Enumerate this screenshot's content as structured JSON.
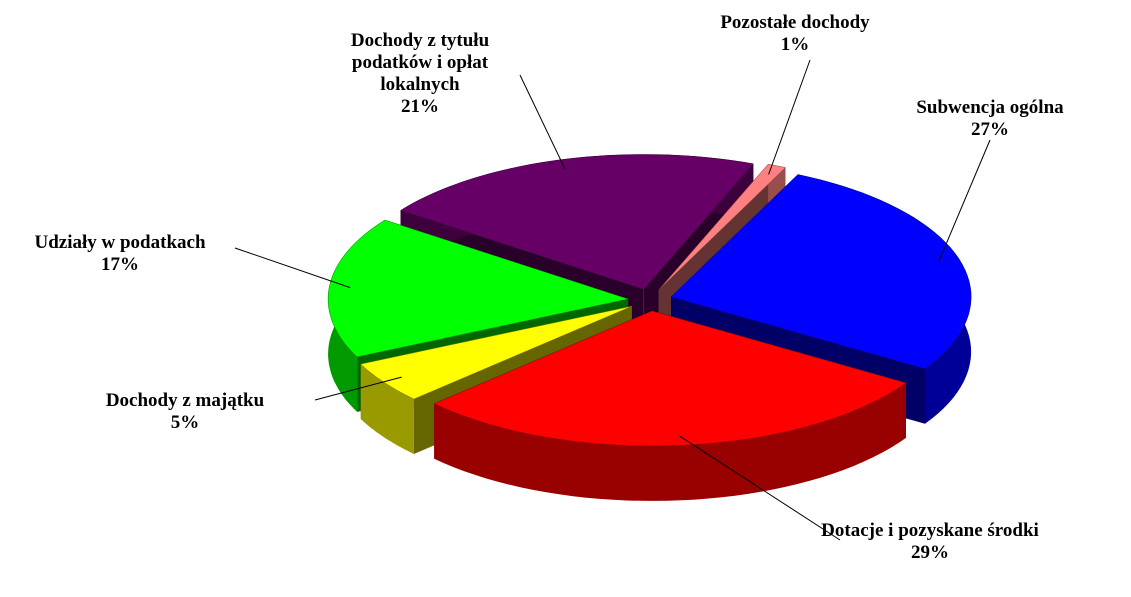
{
  "chart_data": {
    "type": "pie3d",
    "categories": [
      "Subwencja ogólna",
      "Dotacje i pozyskane środki",
      "Dochody z majątku",
      "Udziały w podatkach",
      "Dochody z tytułu podatków i opłat lokalnych",
      "Pozostałe dochody"
    ],
    "values": [
      27,
      29,
      5,
      17,
      21,
      1
    ],
    "value_labels": [
      "27%",
      "29%",
      "5%",
      "17%",
      "21%",
      "1%"
    ],
    "colors": [
      "#0000ff",
      "#ff0000",
      "#ffff00",
      "#00ff00",
      "#660066",
      "#ff8080"
    ]
  }
}
